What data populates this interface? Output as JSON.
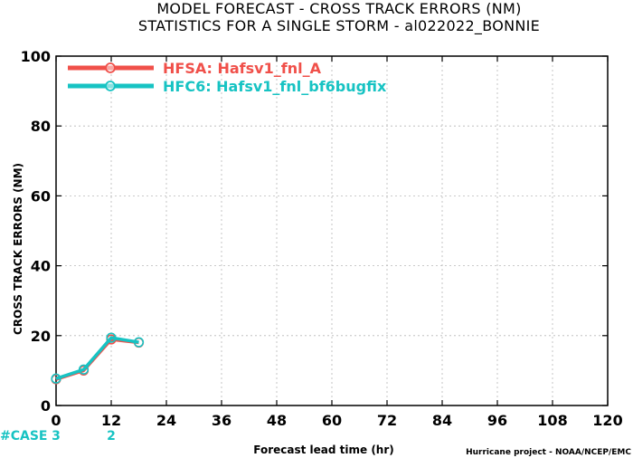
{
  "chart_data": {
    "type": "line",
    "title_line1": "MODEL FORECAST - CROSS TRACK ERRORS (NM)",
    "title_line2": "STATISTICS FOR A SINGLE STORM - al022022_BONNIE",
    "xlabel": "Forecast lead time (hr)",
    "ylabel": "CROSS TRACK ERRORS (NM)",
    "xlim": [
      0,
      120
    ],
    "ylim": [
      0,
      100
    ],
    "x_ticks": [
      "0",
      "12",
      "24",
      "36",
      "48",
      "60",
      "72",
      "84",
      "96",
      "108",
      "120"
    ],
    "y_ticks": [
      "0",
      "20",
      "40",
      "60",
      "80",
      "100"
    ],
    "grid": true,
    "legend_position": "top-left",
    "series": [
      {
        "name": "HFSA: Hafsv1_fnl_A",
        "color": "#f0504a",
        "x": [
          0,
          6,
          12,
          18
        ],
        "y": [
          7.5,
          10,
          18.9,
          18
        ]
      },
      {
        "name": "HFC6: Hafsv1_fnl_bf6bugfix",
        "color": "#17c3c3",
        "x": [
          0,
          6,
          12,
          18
        ],
        "y": [
          7.7,
          10.3,
          19.4,
          18.1
        ]
      }
    ],
    "case_label": "#CASE",
    "case_counts": [
      {
        "x": 0,
        "count": "3"
      },
      {
        "x": 12,
        "count": "2"
      }
    ],
    "credit": "Hurricane project - NOAA/NCEP/EMC"
  }
}
